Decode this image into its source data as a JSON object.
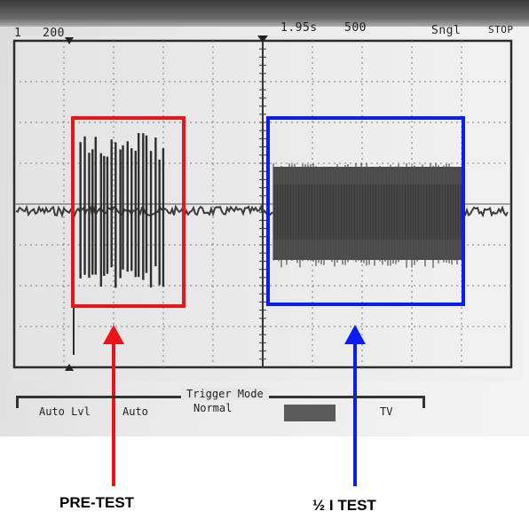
{
  "scope": {
    "channel": "1",
    "volts_per_div": "200",
    "trigger_delay": "1.95s",
    "time_per_div": "500",
    "run_status": "Sngl",
    "stop_label": "STOP",
    "softkeys": {
      "auto_lvl": "Auto Lvl",
      "auto": "Auto",
      "trigger_mode_title": "Trigger Mode",
      "normal": "Normal",
      "tv": "TV"
    }
  },
  "annotations": {
    "pretest_label": "PRE-TEST",
    "half_test_label": "½ I TEST",
    "pretest_color": "#e8151b",
    "half_test_color": "#0a1ef0"
  }
}
